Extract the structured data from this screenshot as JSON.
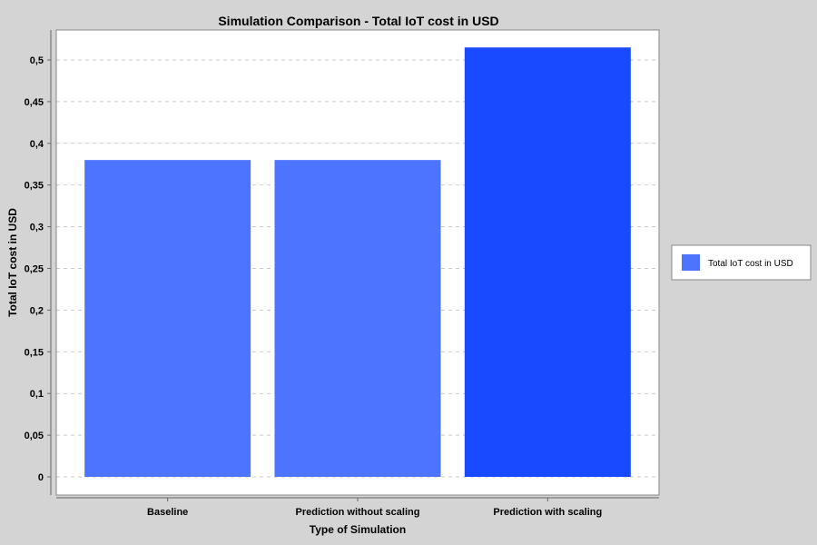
{
  "chart_data": {
    "type": "bar",
    "title": "Simulation Comparison - Total IoT cost in USD",
    "xlabel": "Type of Simulation",
    "ylabel": "Total IoT cost in USD",
    "categories": [
      "Baseline",
      "Prediction without scaling",
      "Prediction with scaling"
    ],
    "series": [
      {
        "name": "Total IoT cost in USD",
        "values": [
          0.38,
          0.38,
          0.515
        ],
        "colors": [
          "#4d74ff",
          "#4d74ff",
          "#1a4aff"
        ]
      }
    ],
    "ylim": [
      0,
      0.5238
    ],
    "yticks": [
      0,
      0.05,
      0.1,
      0.15,
      0.2,
      0.25,
      0.3,
      0.35,
      0.4,
      0.45,
      0.5
    ],
    "ytick_labels": [
      "0",
      "0,05",
      "0,1",
      "0,15",
      "0,2",
      "0,25",
      "0,3",
      "0,35",
      "0,4",
      "0,45",
      "0,5"
    ],
    "grid": true,
    "legend_position": "right",
    "background": "#d4d4d4",
    "plot_background": "#ffffff",
    "gridline_color": "#c8c8c8",
    "legend_swatch_color": "#4d74ff"
  }
}
